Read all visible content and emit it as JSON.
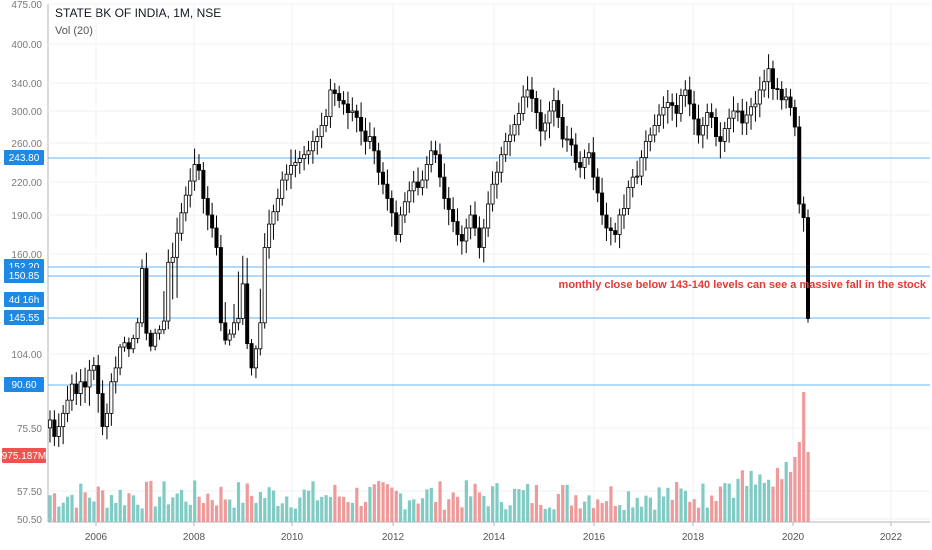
{
  "header": {
    "title": "STATE BK OF INDIA, 1M, NSE",
    "volume_label": "Vol (20)"
  },
  "chart_data": {
    "type": "candlestick",
    "timeframe": "1M",
    "symbol": "STATE BK OF INDIA",
    "exchange": "NSE",
    "price_axis_ticks": [
      "475.00",
      "400.00",
      "340.00",
      "300.00",
      "260.00",
      "220.00",
      "190.00",
      "160.00",
      "104.00",
      "75.50",
      "57.50",
      "50.50"
    ],
    "time_axis_ticks": [
      "2006",
      "2008",
      "2010",
      "2012",
      "2014",
      "2016",
      "2018",
      "2020",
      "2022"
    ],
    "horizontal_levels": [
      {
        "label": "243.80"
      },
      {
        "label": "152.20"
      },
      {
        "label": "150.85"
      },
      {
        "label": "145.55"
      },
      {
        "label": "90.60"
      }
    ],
    "extra_badges": [
      {
        "label": "4d 16h"
      },
      {
        "label": "975.187M"
      }
    ],
    "annotation": "monthly close below 143-140 levels can see a massive fall in the stock",
    "colors": {
      "level_line": "#64b5f6",
      "badge_blue": "#1e88e5",
      "badge_red": "#ef5350",
      "volume_up": "#80cbc4",
      "volume_down": "#ef9a9a",
      "annotation": "#e53935",
      "candle": "#000000"
    },
    "approx_closes": [
      80,
      75,
      78,
      82,
      86,
      91,
      88,
      92,
      90,
      97,
      99,
      88,
      78,
      82,
      92,
      98,
      112,
      117,
      110,
      122,
      140,
      152,
      128,
      113,
      128,
      132,
      142,
      155,
      158,
      176,
      192,
      208,
      221,
      238,
      232,
      205,
      190,
      180,
      165,
      140,
      120,
      127,
      140,
      145,
      150,
      116,
      98,
      110,
      140,
      165,
      183,
      193,
      205,
      222,
      228,
      237,
      240,
      244,
      248,
      252,
      262,
      268,
      282,
      293,
      330,
      325,
      315,
      310,
      298,
      300,
      292,
      275,
      262,
      268,
      252,
      230,
      218,
      205,
      192,
      175,
      190,
      202,
      212,
      220,
      215,
      222,
      238,
      252,
      248,
      225,
      205,
      195,
      185,
      175,
      170,
      180,
      190,
      180,
      165,
      180,
      200,
      218,
      230,
      248,
      262,
      270,
      283,
      297,
      320,
      330,
      318,
      298,
      275,
      285,
      300,
      315,
      292,
      265,
      265,
      258,
      240,
      235,
      245,
      250,
      225,
      210,
      190,
      180,
      178,
      175,
      190,
      196,
      215,
      225,
      226,
      245,
      262,
      270,
      282,
      295,
      305,
      312,
      308,
      297,
      322,
      330,
      310,
      290,
      270,
      282,
      298,
      292,
      268,
      262,
      278,
      291,
      300,
      300,
      285,
      295,
      306,
      310,
      330,
      342,
      362,
      332,
      331,
      316,
      320,
      305,
      280,
      200,
      188,
      145
    ]
  }
}
